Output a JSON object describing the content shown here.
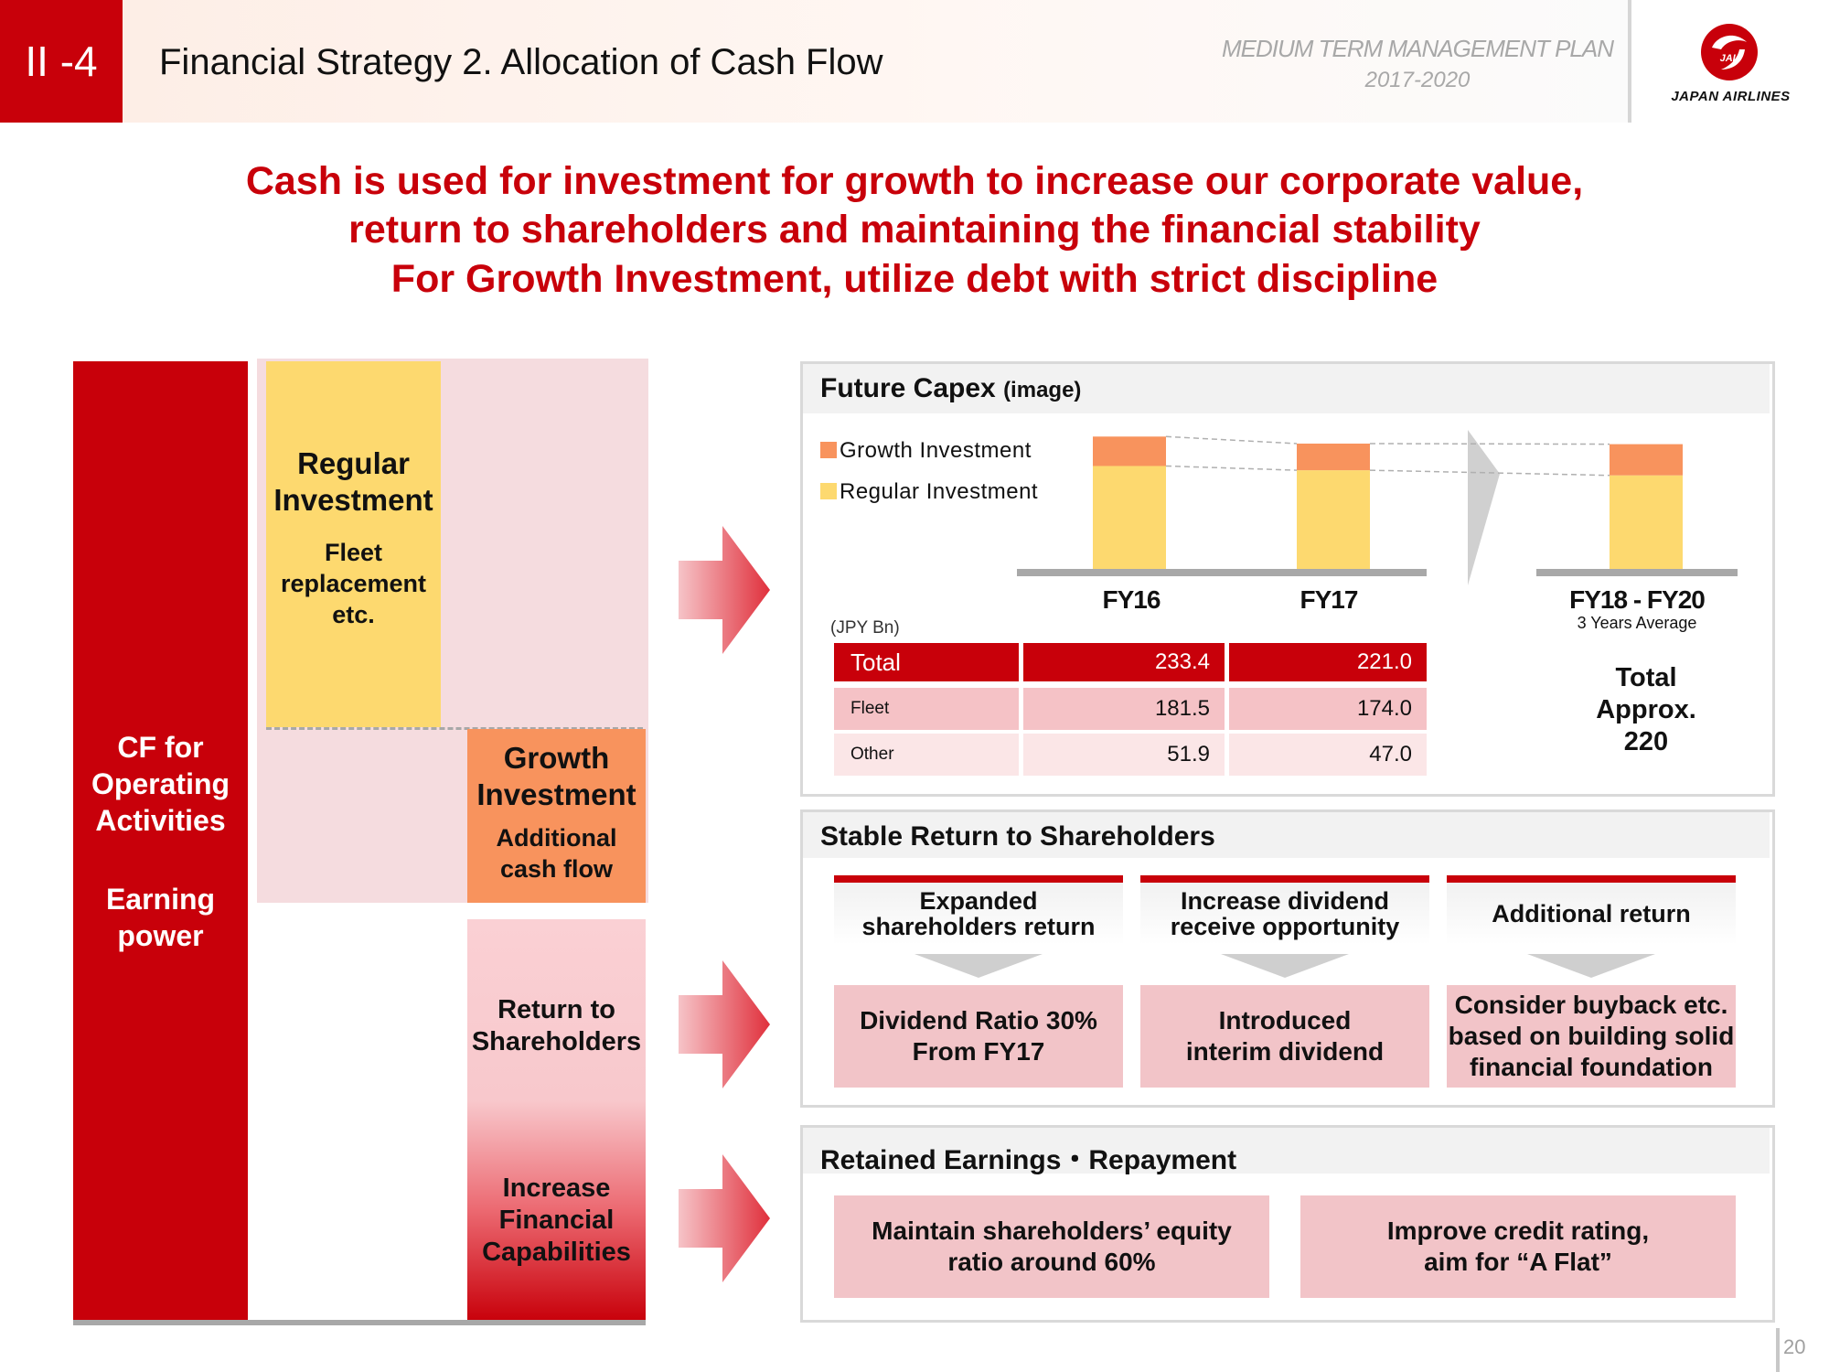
{
  "header": {
    "section_badge": "II -4",
    "title": "Financial Strategy 2. Allocation of Cash Flow",
    "plan_name": "MEDIUM TERM MANAGEMENT PLAN",
    "plan_years": "2017-2020",
    "logo_text": "JAPAN AIRLINES",
    "logo_mark_text": "JAL"
  },
  "message": {
    "line1": "Cash is used for investment for growth to increase our corporate value,",
    "line2": "return to shareholders and maintaining the financial stability",
    "line3": "For Growth Investment, utilize debt with strict discipline"
  },
  "diagram": {
    "cf_label_1": "CF for",
    "cf_label_2": "Operating",
    "cf_label_3": "Activities",
    "cf_label_4": "Earning",
    "cf_label_5": "power",
    "regular_title_1": "Regular",
    "regular_title_2": "Investment",
    "regular_sub_1": "Fleet",
    "regular_sub_2": "replacement",
    "regular_sub_3": "etc.",
    "growth_title_1": "Growth",
    "growth_title_2": "Investment",
    "growth_sub_1": "Additional",
    "growth_sub_2": "cash flow",
    "return_1": "Return to",
    "return_2": "Shareholders",
    "increase_1": "Increase",
    "increase_2": "Financial",
    "increase_3": "Capabilities"
  },
  "capex": {
    "title": "Future Capex",
    "title_note": "(image)",
    "legend_growth": "Growth Investment",
    "legend_regular": "Regular Investment",
    "unit": "(JPY Bn)",
    "fy16": "FY16",
    "fy17": "FY17",
    "fy1820": "FY18 - FY20",
    "fy1820_sub": "3 Years Average",
    "total_note_1": "Total",
    "total_note_2": "Approx.",
    "total_note_3": "220",
    "row_total": "Total",
    "row_fleet": "Fleet",
    "row_other": "Other",
    "total_fy16": "233.4",
    "total_fy17": "221.0",
    "fleet_fy16": "181.5",
    "fleet_fy17": "174.0",
    "other_fy16": "51.9",
    "other_fy17": "47.0",
    "colors": {
      "growth": "#f8935d",
      "regular": "#fdd96f",
      "accent": "#c8000a"
    }
  },
  "chart_data": {
    "type": "bar",
    "categories": [
      "FY16",
      "FY17",
      "FY18 - FY20"
    ],
    "series": [
      {
        "name": "Regular Investment",
        "values": [
          181.5,
          174.0,
          165
        ]
      },
      {
        "name": "Growth Investment",
        "values": [
          51.9,
          47.0,
          55
        ]
      }
    ],
    "stacked": true,
    "ylim": [
      0,
      240
    ]
  },
  "shareholders": {
    "title": "Stable Return to Shareholders",
    "col1_head_1": "Expanded",
    "col1_head_2": "shareholders return",
    "col1_body_1": "Dividend Ratio 30%",
    "col1_body_2": "From FY17",
    "col2_head_1": "Increase dividend",
    "col2_head_2": "receive opportunity",
    "col2_body_1": "Introduced",
    "col2_body_2": "interim dividend",
    "col3_head": "Additional return",
    "col3_body_1": "Consider buyback etc.",
    "col3_body_2": "based on building solid",
    "col3_body_3": "financial foundation"
  },
  "retained": {
    "title": "Retained Earnings・Repayment",
    "box1_1": "Maintain shareholders’ equity",
    "box1_2": "ratio around 60%",
    "box2_1": "Improve credit rating,",
    "box2_2": "aim for “A Flat”"
  },
  "page_number": "20"
}
